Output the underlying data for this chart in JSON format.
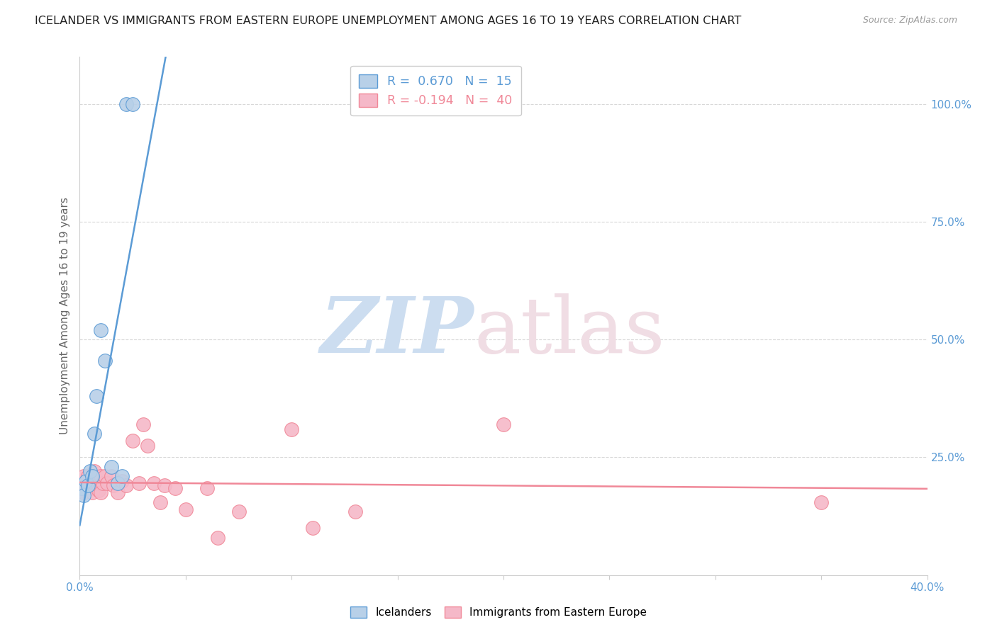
{
  "title": "ICELANDER VS IMMIGRANTS FROM EASTERN EUROPE UNEMPLOYMENT AMONG AGES 16 TO 19 YEARS CORRELATION CHART",
  "source": "Source: ZipAtlas.com",
  "ylabel": "Unemployment Among Ages 16 to 19 years",
  "right_yticks": [
    "100.0%",
    "75.0%",
    "50.0%",
    "25.0%"
  ],
  "right_ytick_vals": [
    1.0,
    0.75,
    0.5,
    0.25
  ],
  "legend_blue_r": "0.670",
  "legend_blue_n": "15",
  "legend_pink_r": "-0.194",
  "legend_pink_n": "40",
  "blue_color": "#b8d0e8",
  "pink_color": "#f5b8c8",
  "blue_line_color": "#5b9bd5",
  "pink_line_color": "#f08898",
  "icelanders_x": [
    0.001,
    0.002,
    0.003,
    0.004,
    0.005,
    0.006,
    0.007,
    0.008,
    0.01,
    0.012,
    0.015,
    0.018,
    0.02,
    0.022,
    0.025
  ],
  "icelanders_y": [
    0.185,
    0.17,
    0.2,
    0.19,
    0.22,
    0.21,
    0.3,
    0.38,
    0.52,
    0.455,
    0.23,
    0.195,
    0.21,
    1.0,
    1.0
  ],
  "immigrants_x": [
    0.001,
    0.001,
    0.002,
    0.002,
    0.003,
    0.004,
    0.005,
    0.005,
    0.006,
    0.007,
    0.007,
    0.008,
    0.009,
    0.01,
    0.01,
    0.011,
    0.012,
    0.013,
    0.015,
    0.016,
    0.018,
    0.02,
    0.022,
    0.025,
    0.028,
    0.03,
    0.032,
    0.035,
    0.038,
    0.04,
    0.045,
    0.05,
    0.06,
    0.065,
    0.075,
    0.1,
    0.11,
    0.13,
    0.2,
    0.35
  ],
  "immigrants_y": [
    0.195,
    0.18,
    0.175,
    0.21,
    0.19,
    0.21,
    0.185,
    0.195,
    0.175,
    0.22,
    0.195,
    0.195,
    0.18,
    0.175,
    0.21,
    0.195,
    0.21,
    0.195,
    0.21,
    0.19,
    0.175,
    0.2,
    0.19,
    0.285,
    0.195,
    0.32,
    0.275,
    0.195,
    0.155,
    0.19,
    0.185,
    0.14,
    0.185,
    0.08,
    0.135,
    0.31,
    0.1,
    0.135,
    0.32,
    0.155
  ],
  "xmin": 0.0,
  "xmax": 0.4,
  "ymin": 0.0,
  "ymax": 1.1,
  "grid_color": "#d8d8d8",
  "spine_color": "#cccccc",
  "xlabel_color": "#5b9bd5",
  "ylabel_color": "#666666"
}
